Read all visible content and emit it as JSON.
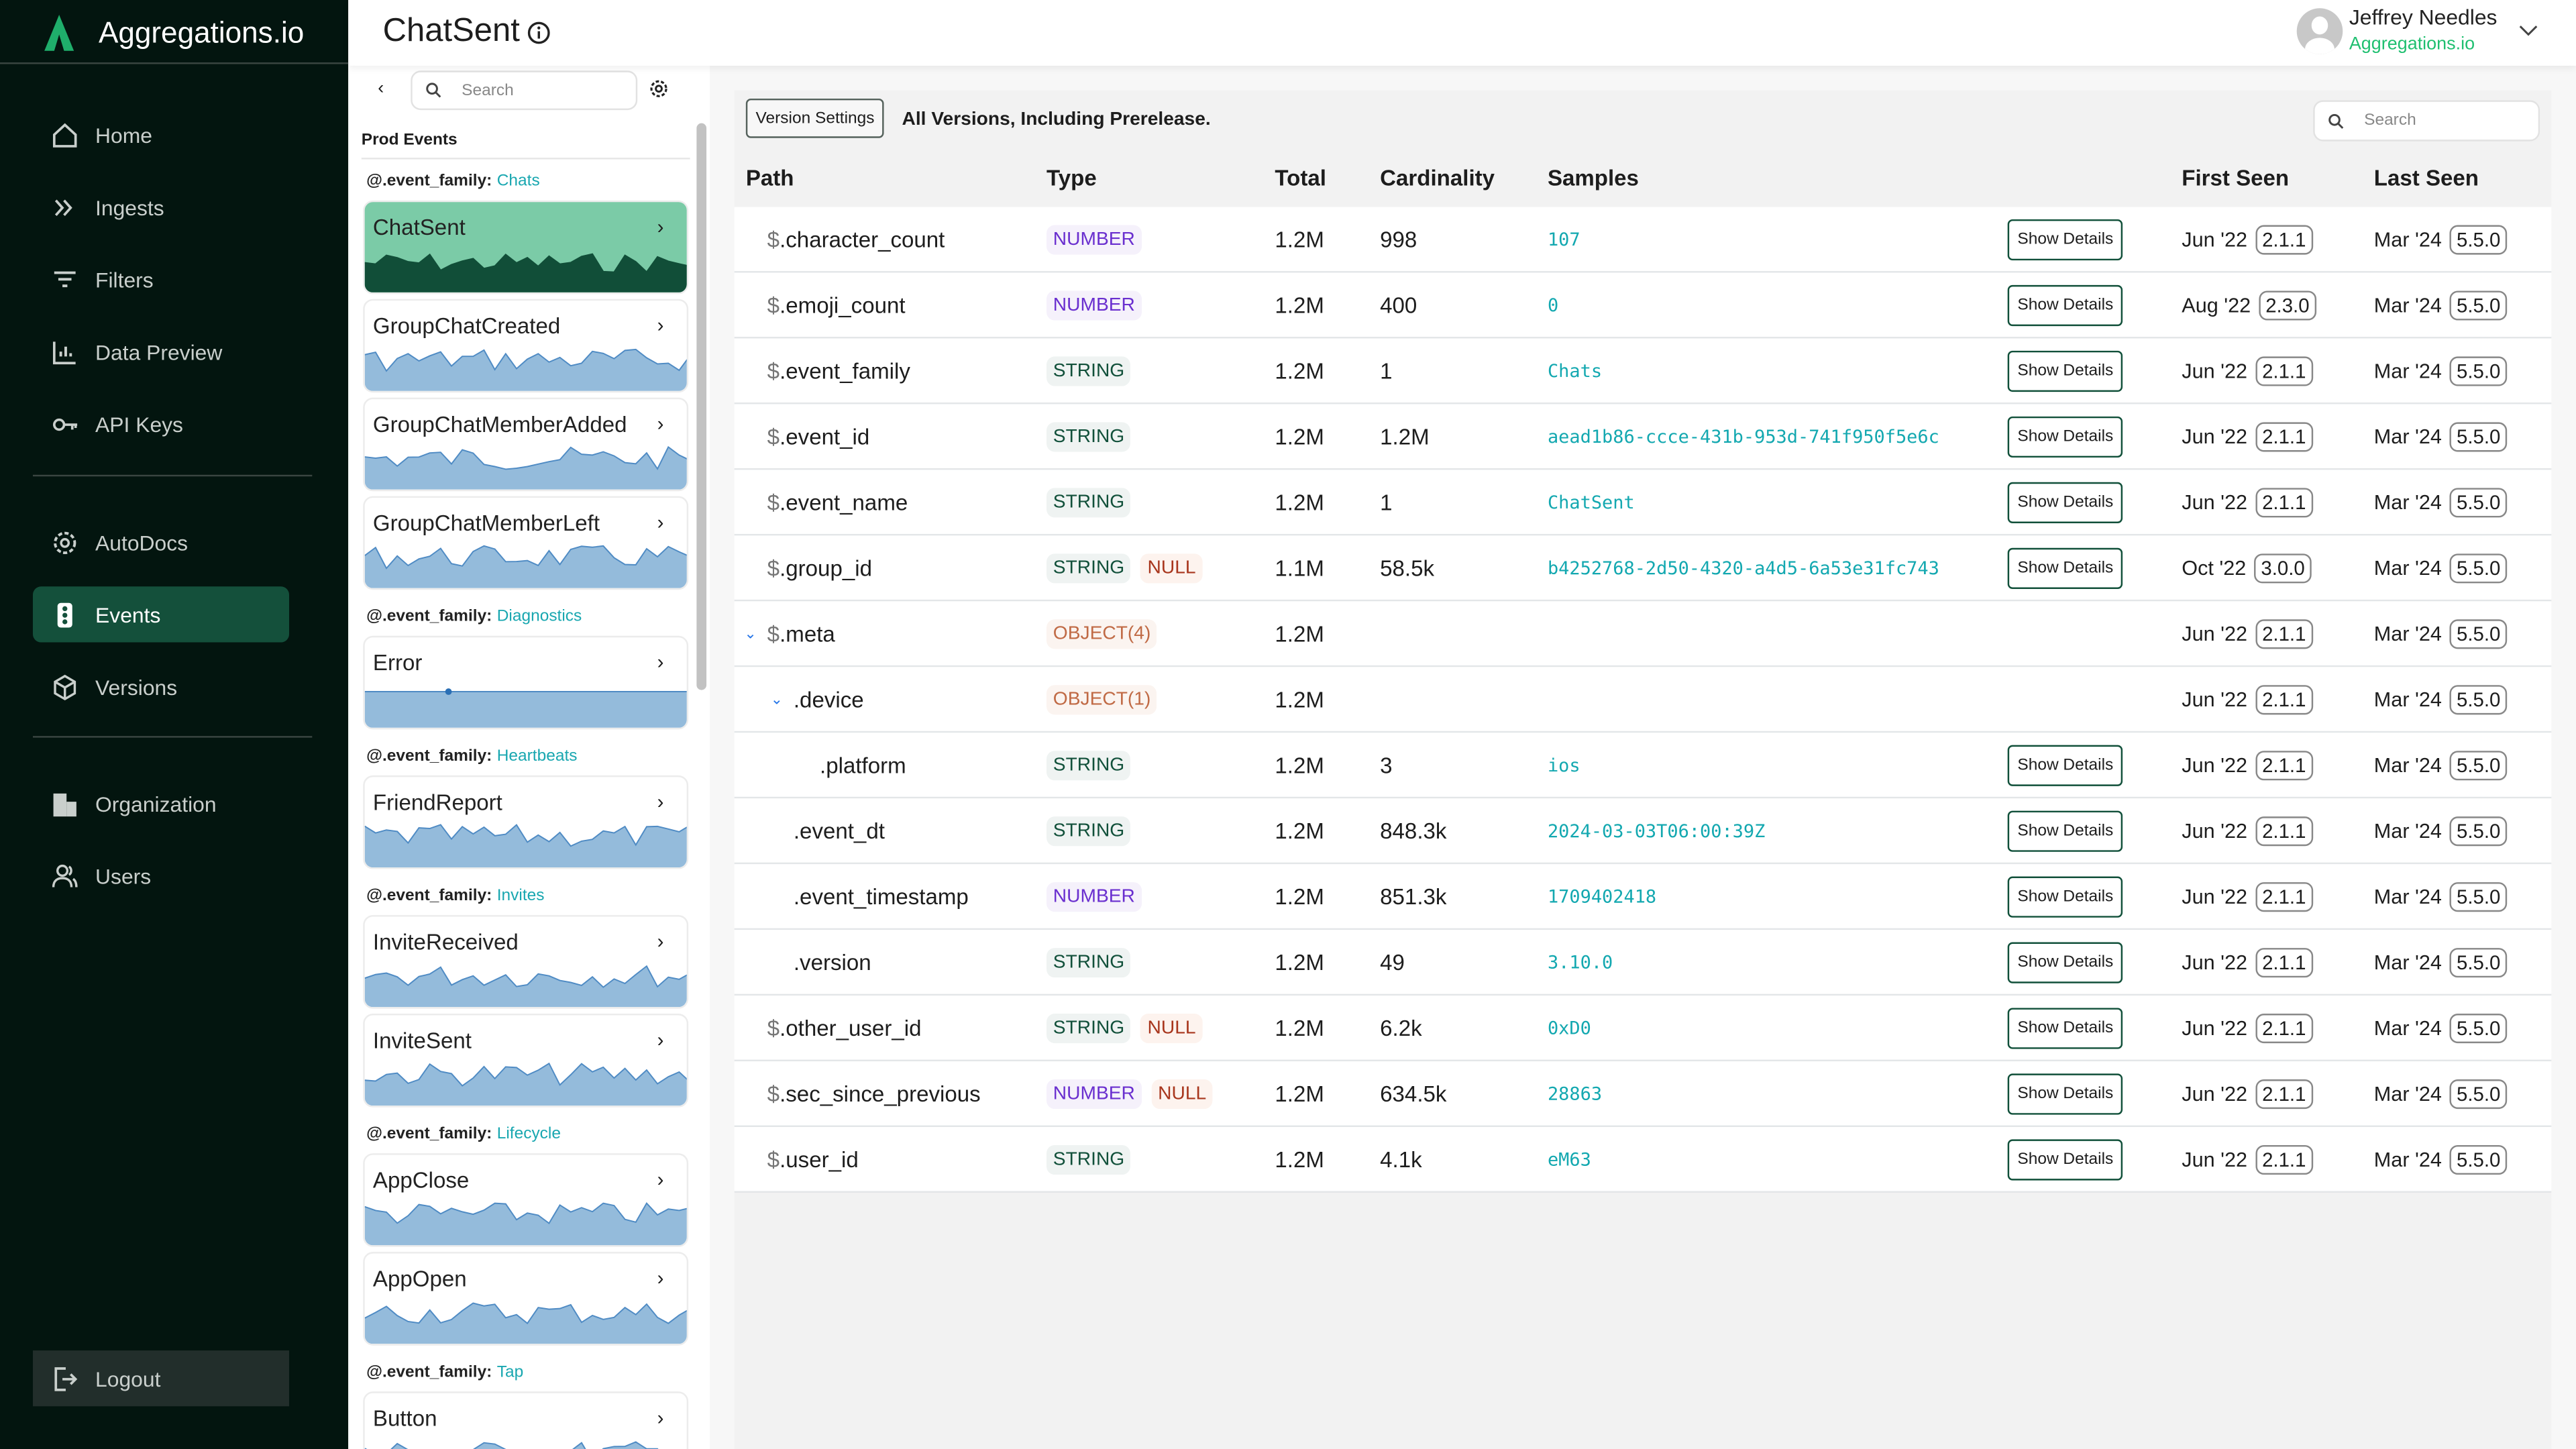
{
  "app": {
    "name": "Aggregations.io"
  },
  "nav": {
    "items": [
      {
        "label": "Home",
        "icon": "home-icon"
      },
      {
        "label": "Ingests",
        "icon": "double-chevron-icon"
      },
      {
        "label": "Filters",
        "icon": "filter-icon"
      },
      {
        "label": "Data Preview",
        "icon": "chart-icon"
      },
      {
        "label": "API Keys",
        "icon": "key-icon"
      },
      {
        "label": "AutoDocs",
        "icon": "gear-icon"
      },
      {
        "label": "Events",
        "icon": "traffic-light-icon",
        "active": true
      },
      {
        "label": "Versions",
        "icon": "cube-icon"
      },
      {
        "label": "Organization",
        "icon": "building-icon"
      },
      {
        "label": "Users",
        "icon": "users-icon"
      }
    ],
    "logout": "Logout"
  },
  "header": {
    "title": "ChatSent",
    "user_name": "Jeffrey Needles",
    "user_org": "Aggregations.io"
  },
  "events_panel": {
    "search_placeholder": "Search",
    "section": "Prod Events",
    "family_prefix": "@.event_family:",
    "groups": [
      {
        "family": "Chats",
        "events": [
          "ChatSent",
          "GroupChatCreated",
          "GroupChatMemberAdded",
          "GroupChatMemberLeft"
        ]
      },
      {
        "family": "Diagnostics",
        "events": [
          "Error"
        ]
      },
      {
        "family": "Heartbeats",
        "events": [
          "FriendReport"
        ]
      },
      {
        "family": "Invites",
        "events": [
          "InviteReceived",
          "InviteSent"
        ]
      },
      {
        "family": "Lifecycle",
        "events": [
          "AppClose",
          "AppOpen"
        ]
      },
      {
        "family": "Tap",
        "events": [
          "Button"
        ]
      }
    ],
    "selected": "ChatSent"
  },
  "main": {
    "version_settings": "Version Settings",
    "version_text": "All Versions, Including Prerelease.",
    "search_placeholder": "Search",
    "columns": [
      "Path",
      "Type",
      "Total",
      "Cardinality",
      "Samples",
      "First Seen",
      "Last Seen"
    ],
    "show_details": "Show Details",
    "rows": [
      {
        "prefix": "$",
        "path": ".character_count",
        "depth": 0,
        "types": [
          "NUMBER"
        ],
        "total": "1.2M",
        "card": "998",
        "sample": "107",
        "details": true,
        "first": "Jun '22",
        "first_v": "2.1.1",
        "last": "Mar '24",
        "last_v": "5.5.0"
      },
      {
        "prefix": "$",
        "path": ".emoji_count",
        "depth": 0,
        "types": [
          "NUMBER"
        ],
        "total": "1.2M",
        "card": "400",
        "sample": "0",
        "details": true,
        "first": "Aug '22",
        "first_v": "2.3.0",
        "last": "Mar '24",
        "last_v": "5.5.0"
      },
      {
        "prefix": "$",
        "path": ".event_family",
        "depth": 0,
        "types": [
          "STRING"
        ],
        "total": "1.2M",
        "card": "1",
        "sample": "Chats",
        "details": true,
        "first": "Jun '22",
        "first_v": "2.1.1",
        "last": "Mar '24",
        "last_v": "5.5.0"
      },
      {
        "prefix": "$",
        "path": ".event_id",
        "depth": 0,
        "types": [
          "STRING"
        ],
        "total": "1.2M",
        "card": "1.2M",
        "sample": "aead1b86-ccce-431b-953d-741f950f5e6c",
        "details": true,
        "first": "Jun '22",
        "first_v": "2.1.1",
        "last": "Mar '24",
        "last_v": "5.5.0"
      },
      {
        "prefix": "$",
        "path": ".event_name",
        "depth": 0,
        "types": [
          "STRING"
        ],
        "total": "1.2M",
        "card": "1",
        "sample": "ChatSent",
        "details": true,
        "first": "Jun '22",
        "first_v": "2.1.1",
        "last": "Mar '24",
        "last_v": "5.5.0"
      },
      {
        "prefix": "$",
        "path": ".group_id",
        "depth": 0,
        "types": [
          "STRING",
          "NULL"
        ],
        "total": "1.1M",
        "card": "58.5k",
        "sample": "b4252768-2d50-4320-a4d5-6a53e31fc743",
        "details": true,
        "first": "Oct '22",
        "first_v": "3.0.0",
        "last": "Mar '24",
        "last_v": "5.5.0"
      },
      {
        "prefix": "$",
        "path": ".meta",
        "depth": 0,
        "expand": true,
        "types": [
          "OBJECT(4)"
        ],
        "total": "1.2M",
        "card": "",
        "sample": "",
        "details": false,
        "first": "Jun '22",
        "first_v": "2.1.1",
        "last": "Mar '24",
        "last_v": "5.5.0"
      },
      {
        "prefix": "",
        "path": ".device",
        "depth": 1,
        "expand": true,
        "types": [
          "OBJECT(1)"
        ],
        "total": "1.2M",
        "card": "",
        "sample": "",
        "details": false,
        "first": "Jun '22",
        "first_v": "2.1.1",
        "last": "Mar '24",
        "last_v": "5.5.0"
      },
      {
        "prefix": "",
        "path": ".platform",
        "depth": 2,
        "types": [
          "STRING"
        ],
        "total": "1.2M",
        "card": "3",
        "sample": "ios",
        "details": true,
        "first": "Jun '22",
        "first_v": "2.1.1",
        "last": "Mar '24",
        "last_v": "5.5.0"
      },
      {
        "prefix": "",
        "path": ".event_dt",
        "depth": 1,
        "types": [
          "STRING"
        ],
        "total": "1.2M",
        "card": "848.3k",
        "sample": "2024-03-03T06:00:39Z",
        "details": true,
        "first": "Jun '22",
        "first_v": "2.1.1",
        "last": "Mar '24",
        "last_v": "5.5.0"
      },
      {
        "prefix": "",
        "path": ".event_timestamp",
        "depth": 1,
        "types": [
          "NUMBER"
        ],
        "total": "1.2M",
        "card": "851.3k",
        "sample": "1709402418",
        "details": true,
        "first": "Jun '22",
        "first_v": "2.1.1",
        "last": "Mar '24",
        "last_v": "5.5.0"
      },
      {
        "prefix": "",
        "path": ".version",
        "depth": 1,
        "types": [
          "STRING"
        ],
        "total": "1.2M",
        "card": "49",
        "sample": "3.10.0",
        "details": true,
        "first": "Jun '22",
        "first_v": "2.1.1",
        "last": "Mar '24",
        "last_v": "5.5.0"
      },
      {
        "prefix": "$",
        "path": ".other_user_id",
        "depth": 0,
        "types": [
          "STRING",
          "NULL"
        ],
        "total": "1.2M",
        "card": "6.2k",
        "sample": "0xD0",
        "details": true,
        "first": "Jun '22",
        "first_v": "2.1.1",
        "last": "Mar '24",
        "last_v": "5.5.0"
      },
      {
        "prefix": "$",
        "path": ".sec_since_previous",
        "depth": 0,
        "types": [
          "NUMBER",
          "NULL"
        ],
        "total": "1.2M",
        "card": "634.5k",
        "sample": "28863",
        "details": true,
        "first": "Jun '22",
        "first_v": "2.1.1",
        "last": "Mar '24",
        "last_v": "5.5.0"
      },
      {
        "prefix": "$",
        "path": ".user_id",
        "depth": 0,
        "types": [
          "STRING"
        ],
        "total": "1.2M",
        "card": "4.1k",
        "sample": "eM63",
        "details": true,
        "first": "Jun '22",
        "first_v": "2.1.1",
        "last": "Mar '24",
        "last_v": "5.5.0"
      }
    ]
  },
  "colors": {
    "sidebar": "#03150f",
    "accent": "#14503b",
    "brand_green": "#1fbf70",
    "sample": "#13a8b0",
    "spark": "#94bbdb",
    "spark_selected": "#114e38"
  }
}
